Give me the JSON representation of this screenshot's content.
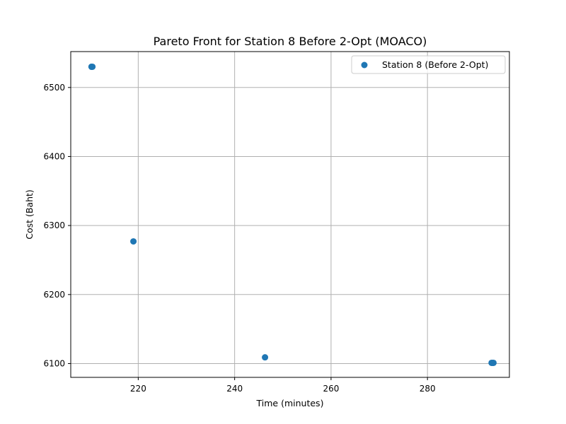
{
  "chart_data": {
    "type": "scatter",
    "title": "Pareto Front for Station 8 Before 2-Opt (MOACO)",
    "xlabel": "Time (minutes)",
    "ylabel": "Cost (Baht)",
    "xlim": [
      206,
      297
    ],
    "ylim": [
      6080,
      6552
    ],
    "xticks": [
      220,
      240,
      260,
      280
    ],
    "yticks": [
      6100,
      6200,
      6300,
      6400,
      6500
    ],
    "grid": true,
    "legend_position": "top-right",
    "series": [
      {
        "name": "Station 8 (Before 2-Opt)",
        "color": "#1f77b4",
        "marker": "circle",
        "points": [
          {
            "x": 210.3,
            "y": 6530
          },
          {
            "x": 210.5,
            "y": 6530
          },
          {
            "x": 219.0,
            "y": 6277
          },
          {
            "x": 246.3,
            "y": 6109
          },
          {
            "x": 293.3,
            "y": 6101
          },
          {
            "x": 293.5,
            "y": 6101
          },
          {
            "x": 293.7,
            "y": 6101
          }
        ]
      }
    ]
  }
}
